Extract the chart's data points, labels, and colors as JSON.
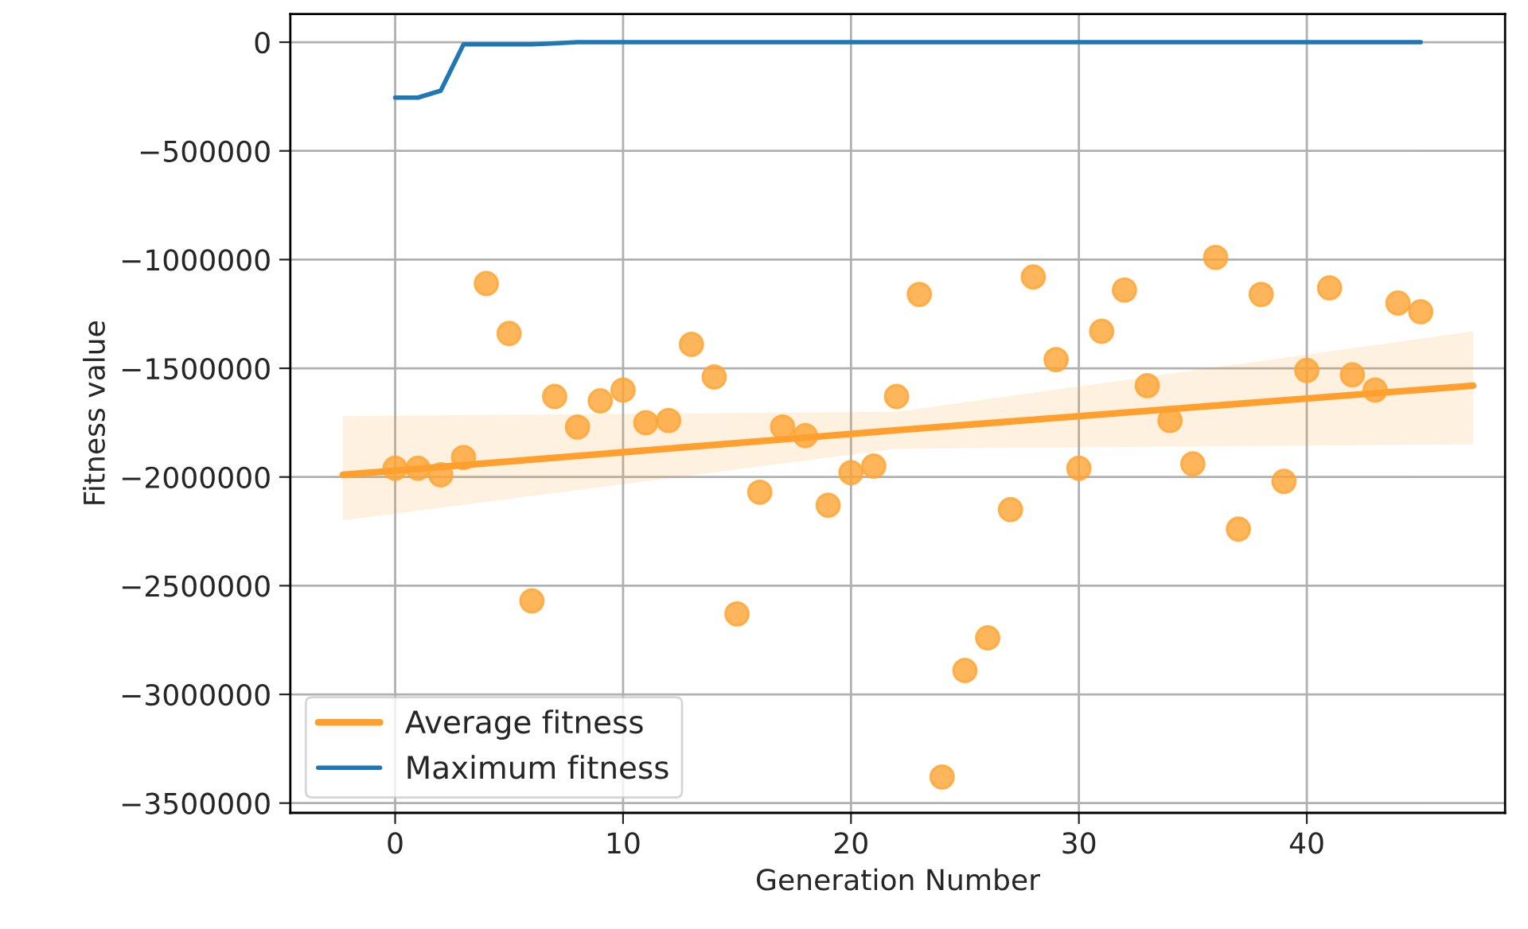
{
  "chart_data": {
    "type": "scatter",
    "xlabel": "Generation Number",
    "ylabel": "Fitness value",
    "x": [
      0,
      1,
      2,
      3,
      4,
      5,
      6,
      7,
      8,
      9,
      10,
      11,
      12,
      13,
      14,
      15,
      16,
      17,
      18,
      19,
      20,
      21,
      22,
      23,
      24,
      25,
      26,
      27,
      28,
      29,
      30,
      31,
      32,
      33,
      34,
      35,
      36,
      37,
      38,
      39,
      40,
      41,
      42,
      43,
      44,
      45
    ],
    "series": [
      {
        "color": "#ffa431",
        "marker": "circle",
        "values": [
          -1960000,
          -1960000,
          -1990000,
          -1910000,
          -1110000,
          -1340000,
          -2570000,
          -1630000,
          -1770000,
          -1650000,
          -1600000,
          -1750000,
          -1740000,
          -1390000,
          -1540000,
          -2630000,
          -2070000,
          -1770000,
          -1810000,
          -2130000,
          -1980000,
          -1950000,
          -1630000,
          -1160000,
          -3380000,
          -2890000,
          -2740000,
          -2150000,
          -1080000,
          -1460000,
          -1960000,
          -1330000,
          -1140000,
          -1580000,
          -1740000,
          -1940000,
          -990000,
          -2240000,
          -1160000,
          -2020000,
          -1510000,
          -1130000,
          -1530000,
          -1600000,
          -1200000,
          -1240000
        ]
      },
      {
        "type": "line",
        "name": "Average fitness",
        "color": "#ffa02e",
        "x": [
          -2.3,
          22,
          47.3
        ],
        "values": [
          -1990000,
          -1785000,
          -1580000
        ],
        "lower": [
          -2200000,
          -1870000,
          -1850000
        ],
        "upper": [
          -1720000,
          -1700000,
          -1330000
        ]
      },
      {
        "type": "line",
        "name": "Maximum fitness",
        "color": "#1f77b4",
        "values": [
          -255000,
          -255000,
          -223000,
          -10000,
          -10000,
          -10000,
          -10000,
          -5000,
          0,
          0,
          0,
          0,
          0,
          0,
          0,
          0,
          0,
          0,
          0,
          0,
          0,
          0,
          0,
          0,
          0,
          0,
          0,
          0,
          0,
          0,
          0,
          0,
          0,
          0,
          0,
          0,
          0,
          0,
          0,
          0,
          0,
          0,
          0,
          0,
          0,
          0
        ]
      }
    ],
    "xlim": [
      -4.6,
      48.7
    ],
    "ylim": [
      -3545000,
      130000
    ],
    "xticks": [
      0,
      10,
      20,
      30,
      40
    ],
    "yticks": [
      {
        "value": -3500000,
        "label": "−3500000"
      },
      {
        "value": -3000000,
        "label": "−3000000"
      },
      {
        "value": -2500000,
        "label": "−2500000"
      },
      {
        "value": -2000000,
        "label": "−2000000"
      },
      {
        "value": -1500000,
        "label": "−1500000"
      },
      {
        "value": -1000000,
        "label": "−1000000"
      },
      {
        "value": -500000,
        "label": "−500000"
      },
      0
    ],
    "grid": true,
    "legend": "bottom left"
  }
}
